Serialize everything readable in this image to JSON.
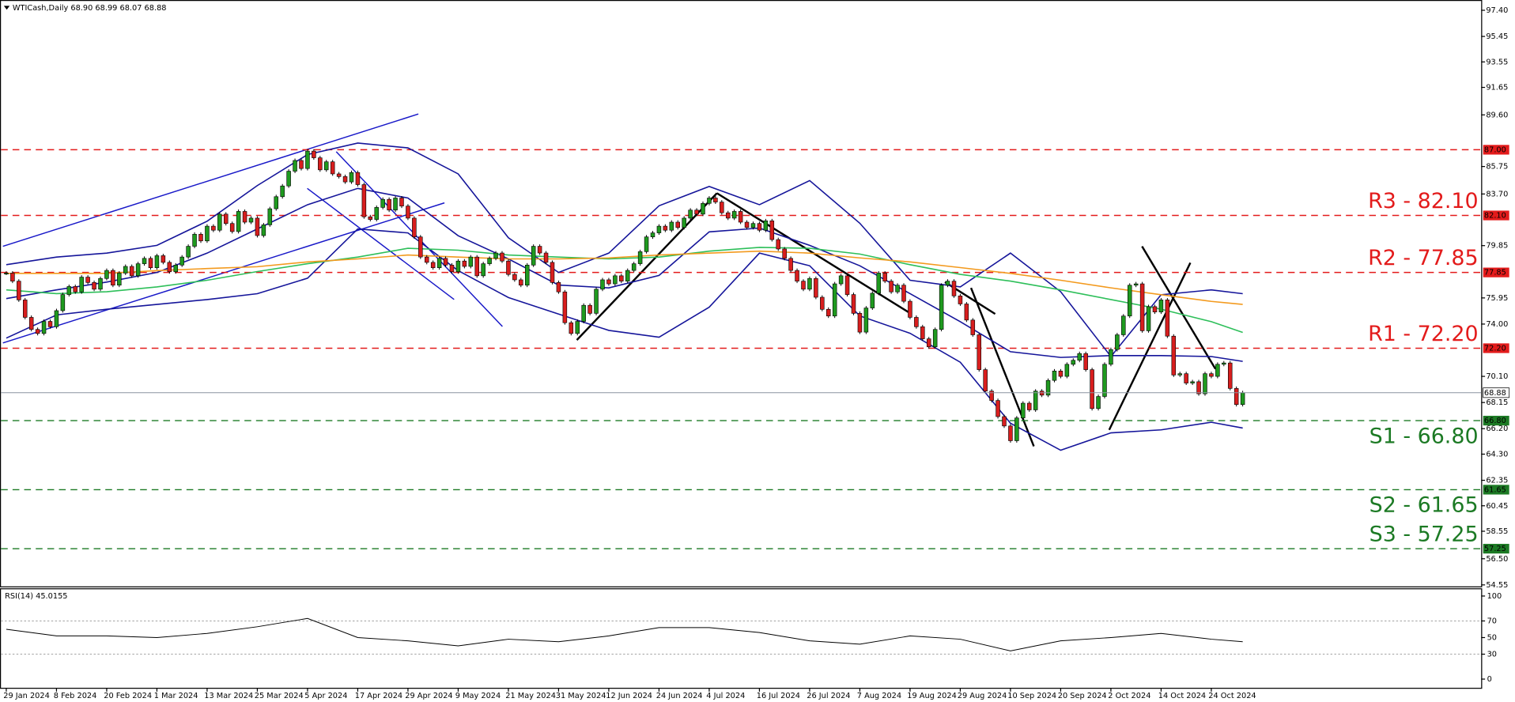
{
  "chart_data": {
    "type": "candlestick",
    "title": "WTICash,Daily 68.90 68.99 68.07 68.88",
    "xlim": [
      -1,
      235
    ],
    "ylim": [
      54.44,
      97.95
    ],
    "xticks": [
      {
        "value": 0,
        "label": "29 Jan 2024"
      },
      {
        "value": 8,
        "label": "8 Feb 2024"
      },
      {
        "value": 16,
        "label": "20 Feb 2024"
      },
      {
        "value": 24,
        "label": "1 Mar 2024"
      },
      {
        "value": 32,
        "label": "13 Mar 2024"
      },
      {
        "value": 40,
        "label": "25 Mar 2024"
      },
      {
        "value": 48,
        "label": "5 Apr 2024"
      },
      {
        "value": 56,
        "label": "17 Apr 2024"
      },
      {
        "value": 64,
        "label": "29 Apr 2024"
      },
      {
        "value": 72,
        "label": "9 May 2024"
      },
      {
        "value": 80,
        "label": "21 May 2024"
      },
      {
        "value": 88,
        "label": "31 May 2024"
      },
      {
        "value": 96,
        "label": "12 Jun 2024"
      },
      {
        "value": 104,
        "label": "24 Jun 2024"
      },
      {
        "value": 112,
        "label": "4 Jul 2024"
      },
      {
        "value": 120,
        "label": "16 Jul 2024"
      },
      {
        "value": 128,
        "label": "26 Jul 2024"
      },
      {
        "value": 136,
        "label": "7 Aug 2024"
      },
      {
        "value": 144,
        "label": "19 Aug 2024"
      },
      {
        "value": 152,
        "label": "29 Aug 2024"
      },
      {
        "value": 160,
        "label": "10 Sep 2024"
      },
      {
        "value": 168,
        "label": "20 Sep 2024"
      },
      {
        "value": 176,
        "label": "2 Oct 2024"
      },
      {
        "value": 184,
        "label": "14 Oct 2024"
      },
      {
        "value": 192,
        "label": "24 Oct 2024"
      }
    ],
    "yticks": [
      {
        "value": 97.4,
        "label": "97.40"
      },
      95.45,
      93.55,
      91.65,
      {
        "value": 89.6,
        "label": "89.60"
      },
      85.75,
      {
        "value": 83.7,
        "label": "83.70"
      },
      79.85,
      75.95,
      {
        "value": 74,
        "label": "74.00"
      },
      {
        "value": 70.1,
        "label": "70.10"
      },
      68.15,
      {
        "value": 66.2,
        "label": "66.20"
      },
      {
        "value": 64.3,
        "label": "64.30"
      },
      62.35,
      60.45,
      58.55,
      {
        "value": 56.5,
        "label": "56.50"
      },
      54.55
    ],
    "up_color": "#1f9a1f",
    "down_color": "#d81e1e",
    "close": [
      77.8,
      77.2,
      75.8,
      74.5,
      73.6,
      73.3,
      74.2,
      73.8,
      75.0,
      76.2,
      76.8,
      76.4,
      77.5,
      77.1,
      76.6,
      77.4,
      78.0,
      76.9,
      77.8,
      78.3,
      77.6,
      78.5,
      78.9,
      78.2,
      79.1,
      78.6,
      77.9,
      78.4,
      79.0,
      79.8,
      80.7,
      80.2,
      81.3,
      81.0,
      82.2,
      81.5,
      80.9,
      82.4,
      81.6,
      81.9,
      80.6,
      81.4,
      82.6,
      83.5,
      84.3,
      85.4,
      86.2,
      85.6,
      86.9,
      86.4,
      85.5,
      86.1,
      85.2,
      85.0,
      84.6,
      85.3,
      84.4,
      82.0,
      81.8,
      82.7,
      83.3,
      82.5,
      83.4,
      82.8,
      81.9,
      80.5,
      79.0,
      78.6,
      78.2,
      78.9,
      78.4,
      77.9,
      78.7,
      78.3,
      79.0,
      77.6,
      78.5,
      78.9,
      79.3,
      78.7,
      77.7,
      77.3,
      76.9,
      78.4,
      79.8,
      79.3,
      78.6,
      77.1,
      76.4,
      74.1,
      73.3,
      74.2,
      75.4,
      74.8,
      76.6,
      77.3,
      77.0,
      77.6,
      77.2,
      78.0,
      78.5,
      79.4,
      80.5,
      80.8,
      81.3,
      81.0,
      81.6,
      81.2,
      81.9,
      82.5,
      82.2,
      83.0,
      83.4,
      83.1,
      82.3,
      81.9,
      82.4,
      81.6,
      81.2,
      81.5,
      81.0,
      81.7,
      80.3,
      79.6,
      78.9,
      78.0,
      77.2,
      76.6,
      77.4,
      76.0,
      75.1,
      74.6,
      77.0,
      77.6,
      76.2,
      74.8,
      73.4,
      75.2,
      76.3,
      77.8,
      77.2,
      76.4,
      76.9,
      75.7,
      74.5,
      73.8,
      72.9,
      72.3,
      73.6,
      76.9,
      77.2,
      76.1,
      75.5,
      74.3,
      73.2,
      70.6,
      69.0,
      68.3,
      67.1,
      66.4,
      65.3,
      67.0,
      68.1,
      67.6,
      69.0,
      68.7,
      69.8,
      70.5,
      70.1,
      71.0,
      71.3,
      71.8,
      70.6,
      67.7,
      68.6,
      71.0,
      72.1,
      73.2,
      74.6,
      76.9,
      77.0,
      73.5,
      75.3,
      74.9,
      75.8,
      73.1,
      70.2,
      70.3,
      69.6,
      69.7,
      68.8,
      70.3,
      70.1,
      71.0,
      71.1,
      69.2,
      68.0,
      68.88
    ],
    "overlay_x": [
      0,
      8,
      16,
      24,
      32,
      40,
      48,
      56,
      64,
      72,
      80,
      88,
      96,
      104,
      112,
      120,
      128,
      136,
      144,
      152,
      160,
      168,
      176,
      184,
      192,
      197
    ],
    "overlays": [
      {
        "color": "#15159a",
        "values": [
          78.43,
          79.0,
          79.29,
          79.87,
          81.67,
          84.33,
          86.64,
          87.5,
          87.14,
          85.2,
          80.44,
          77.85,
          79.29,
          82.82,
          84.26,
          82.9,
          84.7,
          81.52,
          77.27,
          76.77,
          79.29,
          76.41,
          71.58,
          76.19,
          76.55,
          76.27
        ]
      },
      {
        "color": "#15159a",
        "values": [
          75.9,
          76.55,
          77.13,
          77.85,
          79.29,
          81.09,
          82.9,
          84.12,
          83.4,
          80.59,
          78.86,
          76.91,
          76.7,
          77.63,
          80.88,
          81.16,
          79.87,
          78.35,
          76.27,
          74.18,
          71.94,
          71.51,
          71.65,
          71.65,
          71.58,
          71.22
        ]
      },
      {
        "color": "#15159a",
        "values": [
          72.95,
          74.68,
          75.11,
          75.47,
          75.83,
          76.27,
          77.42,
          81.09,
          80.8,
          77.99,
          75.98,
          74.75,
          73.53,
          73.02,
          75.26,
          79.29,
          78.35,
          74.61,
          73.31,
          71.15,
          66.61,
          64.59,
          65.89,
          66.11,
          66.68,
          66.25
        ]
      },
      {
        "color": "#2ebf5a",
        "values": [
          76.55,
          76.27,
          76.41,
          76.77,
          77.27,
          77.92,
          78.5,
          79.0,
          79.65,
          79.51,
          79.15,
          79.0,
          78.86,
          79.0,
          79.44,
          79.72,
          79.65,
          79.22,
          78.43,
          77.71,
          77.2,
          76.55,
          75.83,
          75.11,
          74.18,
          73.38
        ]
      },
      {
        "color": "#f39a1e",
        "values": [
          77.78,
          77.78,
          77.78,
          77.99,
          78.14,
          78.28,
          78.64,
          78.86,
          79.15,
          79.0,
          78.86,
          78.86,
          78.93,
          79.15,
          79.29,
          79.44,
          79.29,
          78.93,
          78.64,
          78.21,
          77.78,
          77.27,
          76.7,
          76.19,
          75.69,
          75.47
        ]
      }
    ],
    "levels": [
      {
        "value": 87,
        "value_label": "87.00",
        "color": "#e31b1b"
      },
      {
        "value": 82.1,
        "label": "R3 - 82.10",
        "value_label": "82.10",
        "color": "#e31b1b"
      },
      {
        "value": 77.85,
        "label": "R2 - 77.85",
        "value_label": "77.85",
        "color": "#e31b1b"
      },
      {
        "value": 72.2,
        "label": "R1 - 72.20",
        "value_label": "72.20",
        "color": "#e31b1b"
      },
      {
        "value": 66.8,
        "label": "S1 - 66.80",
        "value_label": "66.80",
        "color": "#1c7a24"
      },
      {
        "value": 61.65,
        "label": "S2 - 61.65",
        "value_label": "61.65",
        "color": "#1c7a24"
      },
      {
        "value": 57.25,
        "label": "S3 - 57.25",
        "value_label": "57.25",
        "color": "#1c7a24"
      }
    ],
    "last": {
      "value": 68.88,
      "label": "68.88"
    },
    "rsi": {
      "title": "RSI(14) 45.0155",
      "ylim": [
        0,
        100
      ],
      "yticks": [
        0,
        30,
        50,
        70,
        100
      ],
      "levels": [
        30,
        70
      ],
      "color": "#000000",
      "values": [
        60,
        52,
        52,
        50,
        55,
        63,
        73,
        50,
        46,
        40,
        48,
        45,
        52,
        62,
        62,
        56,
        46,
        42,
        52,
        48,
        34,
        46,
        50,
        55,
        48,
        45.0155
      ]
    }
  }
}
